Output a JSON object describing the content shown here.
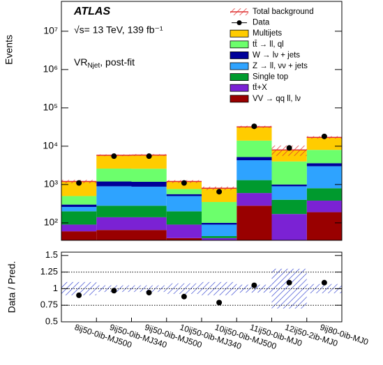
{
  "chart_data": [
    {
      "type": "bar",
      "stacked": true,
      "log_scale": true,
      "y_label": "Events",
      "experiment": "ATLAS",
      "energy_text": "√s= 13 TeV, 139 fb⁻¹",
      "region": {
        "base": "VR",
        "sub": "Njet",
        "rest": ", post-fit"
      },
      "categories": [
        "8ij50-0ib-MJ500",
        "9ij50-0ib-MJ340",
        "9ij50-0ib-MJ500",
        "10ij50-0ib-MJ340",
        "10ij50-0ib-MJ500",
        "11ij50-0ib-MJ0",
        "12ij50-2ib-MJ0",
        "9ij80-0ib-MJ0"
      ],
      "ylim": [
        35,
        60000000
      ],
      "yticks": [
        {
          "value": 100,
          "label": "10²"
        },
        {
          "value": 1000,
          "label": "10³"
        },
        {
          "value": 10000,
          "label": "10⁴"
        },
        {
          "value": 100000,
          "label": "10⁵"
        },
        {
          "value": 1000000,
          "label": "10⁶"
        },
        {
          "value": 10000000,
          "label": "10⁷"
        }
      ],
      "total_background": {
        "name": "Total background",
        "color": "#e03030"
      },
      "data": {
        "name": "Data",
        "color": "#000000",
        "values": [
          1100,
          5500,
          5500,
          1100,
          650,
          33000,
          9000,
          18000
        ]
      },
      "series": [
        {
          "name": "VV → qq ll, lν",
          "color": "#990000",
          "values": [
            60,
            65,
            65,
            40,
            35,
            280,
            20,
            190
          ]
        },
        {
          "name": "tt̄+X",
          "color": "#7b22d4",
          "values": [
            30,
            75,
            75,
            50,
            5,
            320,
            150,
            190
          ]
        },
        {
          "name": "Single top",
          "color": "#009a2e",
          "values": [
            110,
            140,
            140,
            110,
            5,
            700,
            230,
            420
          ]
        },
        {
          "name": "Z → ll, νν + jets",
          "color": "#2ea3ff",
          "values": [
            60,
            620,
            600,
            300,
            45,
            3000,
            500,
            2200
          ]
        },
        {
          "name": "W → lν + jets",
          "color": "#000099",
          "values": [
            40,
            300,
            300,
            60,
            10,
            900,
            100,
            600
          ]
        },
        {
          "name": "tt̄ → ll, ql",
          "color": "#6cff6c",
          "values": [
            200,
            1400,
            1400,
            200,
            250,
            8800,
            3000,
            4400
          ]
        },
        {
          "name": "Multijets",
          "color": "#ffcc00",
          "values": [
            700,
            3200,
            3300,
            440,
            450,
            18000,
            4000,
            9000
          ]
        }
      ]
    },
    {
      "type": "scatter",
      "y_label": "Data / Pred.",
      "ylim": [
        0.5,
        1.55
      ],
      "yticks": [
        0.5,
        0.75,
        1,
        1.25,
        1.5
      ],
      "grid_lines": [
        0.75,
        1,
        1.25
      ],
      "values": [
        0.9,
        0.97,
        0.94,
        0.88,
        0.79,
        1.05,
        1.09,
        1.09
      ],
      "uncertainty": [
        0.1,
        0.05,
        0.05,
        0.08,
        0.1,
        0.06,
        0.3,
        0.07
      ],
      "uncertainty_color": "#2233cc"
    }
  ]
}
